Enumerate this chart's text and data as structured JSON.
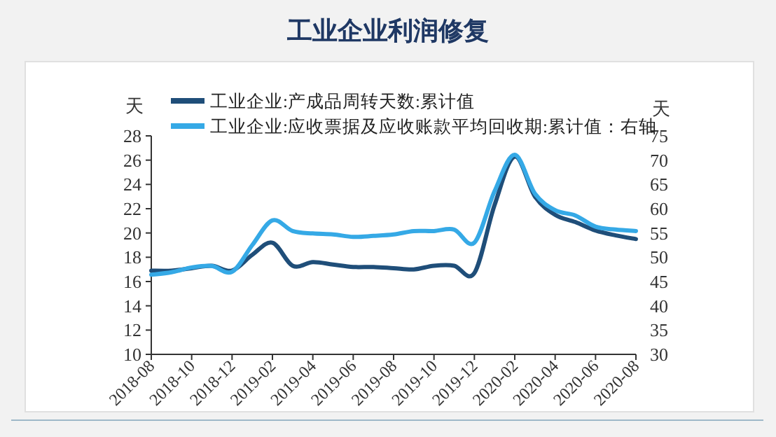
{
  "chart_data": {
    "type": "line",
    "title": "工业企业利润修复",
    "ylabel": "天",
    "y2label": "天",
    "x": [
      "2018-08",
      "2018-09",
      "2018-10",
      "2018-11",
      "2018-12",
      "2019-01",
      "2019-02",
      "2019-03",
      "2019-04",
      "2019-05",
      "2019-06",
      "2019-07",
      "2019-08",
      "2019-09",
      "2019-10",
      "2019-11",
      "2019-12",
      "2020-01",
      "2020-02",
      "2020-03",
      "2020-04",
      "2020-05",
      "2020-06",
      "2020-07",
      "2020-08"
    ],
    "series": [
      {
        "name": "工业企业:产成品周转天数:累计值",
        "color": "#1f4e79",
        "values": [
          16.9,
          16.9,
          17.1,
          17.3,
          16.9,
          18.2,
          19.2,
          17.3,
          17.6,
          17.4,
          17.2,
          17.2,
          17.1,
          17.0,
          17.3,
          17.3,
          16.7,
          22.3,
          26.3,
          23.0,
          21.5,
          20.9,
          20.2,
          19.8,
          19.5
        ]
      },
      {
        "name": "工业企业:应收票据及应收账款平均回收期:累计值：右轴",
        "color": "#35a9e6",
        "axis": "y2",
        "values": [
          46.4,
          46.9,
          47.9,
          48.2,
          47.0,
          52.5,
          57.6,
          55.4,
          54.9,
          54.7,
          54.2,
          54.4,
          54.7,
          55.4,
          55.4,
          55.7,
          53.0,
          63.6,
          71.1,
          63.1,
          59.7,
          58.6,
          56.3,
          55.7,
          55.4
        ]
      }
    ],
    "xlim": [
      "2018-08",
      "2020-08"
    ],
    "xticks": [
      "2018-08",
      "2018-10",
      "2018-12",
      "2019-02",
      "2019-04",
      "2019-06",
      "2019-08",
      "2019-10",
      "2019-12",
      "2020-02",
      "2020-04",
      "2020-06",
      "2020-08"
    ],
    "ylim": [
      10,
      28
    ],
    "yticks": [
      10,
      12,
      14,
      16,
      18,
      20,
      22,
      24,
      26,
      28
    ],
    "y2lim": [
      30,
      75
    ],
    "y2ticks": [
      30,
      35,
      40,
      45,
      50,
      55,
      60,
      65,
      70,
      75
    ],
    "legend": "top left"
  }
}
